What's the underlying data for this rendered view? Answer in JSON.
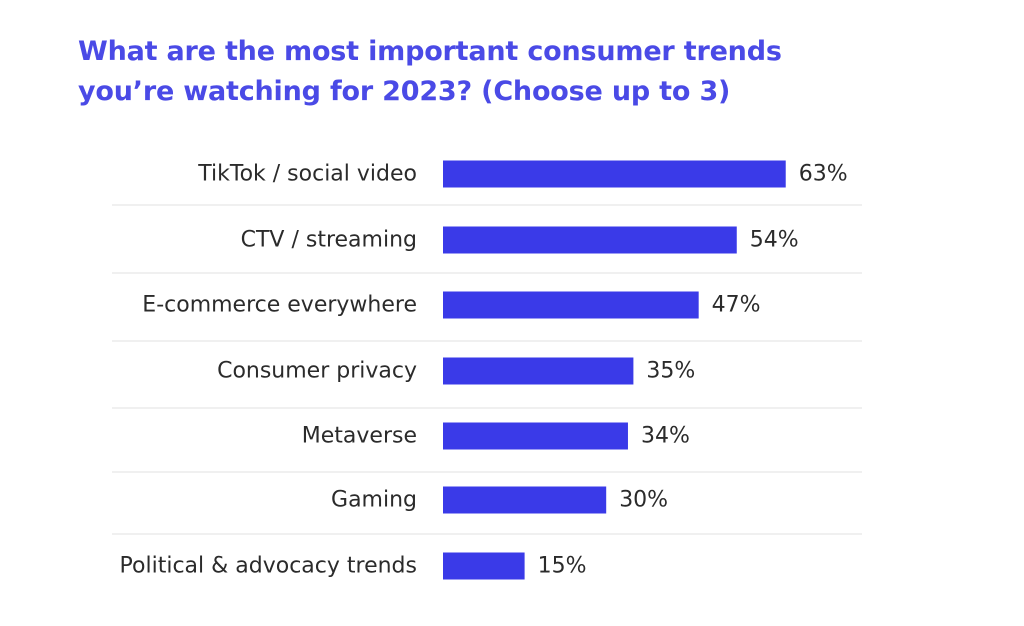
{
  "colors": {
    "title": "#4a4ae6",
    "bar": "#3a3ae8",
    "separator": "#ececec",
    "text": "#2b2b2b"
  },
  "chart_data": {
    "type": "bar",
    "orientation": "horizontal",
    "title_lines": [
      "What are the most important consumer trends",
      "you’re watching for 2023? (Choose up to 3)"
    ],
    "categories": [
      "TikTok / social video",
      "CTV / streaming",
      "E-commerce everywhere",
      "Consumer privacy",
      "Metaverse",
      "Gaming",
      "Political & advocacy trends"
    ],
    "values": [
      63,
      54,
      47,
      35,
      34,
      30,
      15
    ],
    "value_labels": [
      "63%",
      "54%",
      "47%",
      "35%",
      "34%",
      "30%",
      "15%"
    ],
    "unit": "%",
    "xlim": [
      0,
      100
    ],
    "xlabel": "",
    "ylabel": "",
    "grid": false,
    "legend": "none"
  }
}
